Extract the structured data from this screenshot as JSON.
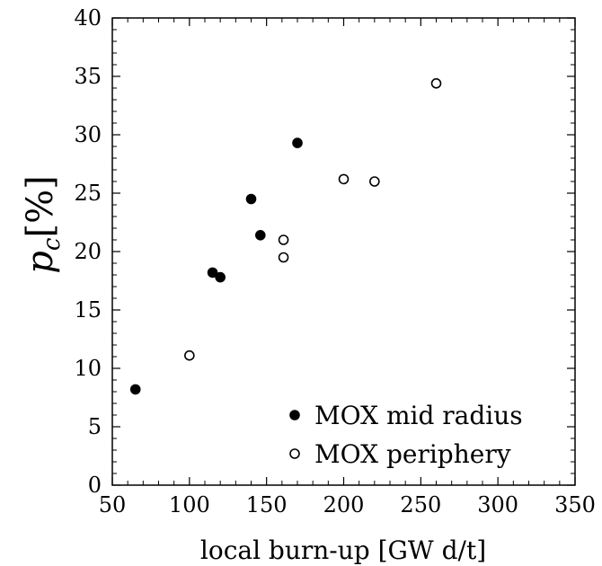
{
  "chart_data": {
    "type": "scatter",
    "title": "",
    "xlabel": "local burn-up [GW d/t]",
    "ylabel": "p_c[%]",
    "xlim": [
      50,
      350
    ],
    "ylim": [
      0,
      40
    ],
    "xticks": [
      50,
      100,
      150,
      200,
      250,
      300,
      350
    ],
    "yticks": [
      0,
      5,
      10,
      15,
      20,
      25,
      30,
      35,
      40
    ],
    "grid": false,
    "legend_position": "bottom-right",
    "series": [
      {
        "name": "MOX mid radius",
        "marker": "filled-circle",
        "color": "#000000",
        "points": [
          {
            "x": 65,
            "y": 8.2
          },
          {
            "x": 115,
            "y": 18.2
          },
          {
            "x": 120,
            "y": 17.8
          },
          {
            "x": 140,
            "y": 24.5
          },
          {
            "x": 146,
            "y": 21.4
          },
          {
            "x": 170,
            "y": 29.3
          }
        ]
      },
      {
        "name": "MOX periphery",
        "marker": "open-circle",
        "color": "#000000",
        "points": [
          {
            "x": 100,
            "y": 11.1
          },
          {
            "x": 161,
            "y": 21.0
          },
          {
            "x": 161,
            "y": 19.5
          },
          {
            "x": 200,
            "y": 26.2
          },
          {
            "x": 220,
            "y": 26.0
          },
          {
            "x": 260,
            "y": 34.4
          }
        ]
      }
    ]
  }
}
